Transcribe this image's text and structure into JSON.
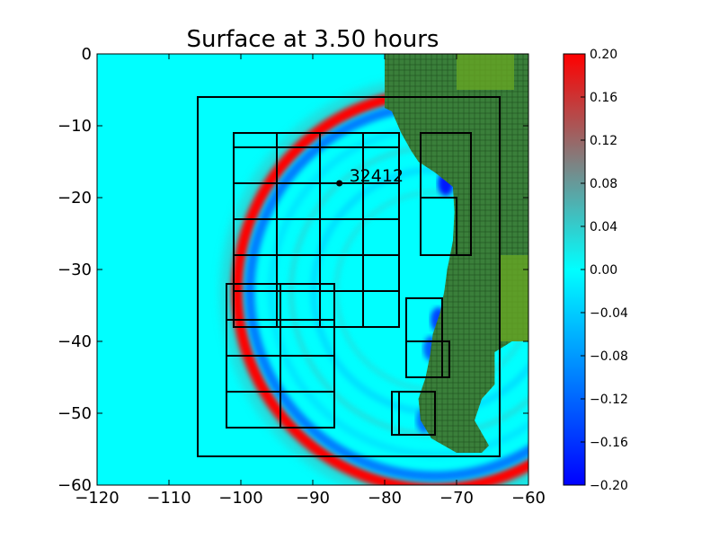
{
  "chart_data": {
    "type": "heatmap",
    "title": "Surface at 3.50 hours",
    "xlabel": "",
    "ylabel": "",
    "xlim": [
      -120,
      -60
    ],
    "ylim": [
      -60,
      0
    ],
    "x_ticks": [
      -120,
      -110,
      -100,
      -90,
      -80,
      -70,
      -60
    ],
    "y_ticks": [
      0,
      -10,
      -20,
      -30,
      -40,
      -50,
      -60
    ],
    "x_tick_labels": [
      "−120",
      "−110",
      "−100",
      "−90",
      "−80",
      "−70",
      "−60"
    ],
    "y_tick_labels": [
      "0",
      "−10",
      "−20",
      "−30",
      "−40",
      "−50",
      "−60"
    ],
    "colorbar": {
      "range": [
        -0.2,
        0.2
      ],
      "colormap": [
        "#0000ff",
        "#00ffff",
        "#808080",
        "#ff0000"
      ],
      "ticks": [
        0.2,
        0.16,
        0.12,
        0.08,
        0.04,
        0.0,
        -0.04,
        -0.08,
        -0.12,
        -0.16,
        -0.2
      ],
      "tick_labels": [
        "0.20",
        "0.16",
        "0.12",
        "0.08",
        "0.04",
        "0.00",
        "−0.04",
        "−0.08",
        "−0.12",
        "−0.16",
        "−0.20"
      ]
    },
    "background_color": "#00ffff",
    "land_color": "#3a7f3a",
    "highland_color": "#6aa823",
    "wave_front": {
      "center": [
        -73,
        -33
      ],
      "crest_radius_deg": 27.5,
      "crest_value": 0.2,
      "trough_value": -0.12,
      "fade_value": 0.05
    },
    "gauge": {
      "id": "32412",
      "label": "32412",
      "x": -86.3,
      "y": -18.0
    },
    "refinement_regions": [
      {
        "xlim": [
          -106,
          -64
        ],
        "ylim": [
          -56,
          -6
        ]
      },
      {
        "xlim": [
          -101,
          -78
        ],
        "ylim": [
          -38,
          -11
        ],
        "grid_step": [
          6,
          5
        ]
      },
      {
        "xlim": [
          -102,
          -87
        ],
        "ylim": [
          -52,
          -32
        ],
        "grid_step": [
          7.5,
          5
        ]
      },
      {
        "xlim": [
          -75,
          -68
        ],
        "ylim": [
          -28,
          -11
        ]
      },
      {
        "xlim": [
          -75,
          -70
        ],
        "ylim": [
          -28,
          -20
        ]
      },
      {
        "xlim": [
          -77,
          -72
        ],
        "ylim": [
          -45,
          -34
        ]
      },
      {
        "xlim": [
          -77,
          -71
        ],
        "ylim": [
          -45,
          -40
        ]
      },
      {
        "xlim": [
          -79,
          -73
        ],
        "ylim": [
          -53,
          -47
        ]
      },
      {
        "xlim": [
          -78,
          -73
        ],
        "ylim": [
          -53,
          -47
        ]
      }
    ],
    "coastline": [
      [
        -80,
        0
      ],
      [
        -80,
        -7.5
      ],
      [
        -79,
        -8
      ],
      [
        -77.7,
        -11
      ],
      [
        -76.3,
        -13.5
      ],
      [
        -75.3,
        -15
      ],
      [
        -73,
        -16.5
      ],
      [
        -70.5,
        -18.5
      ],
      [
        -70.3,
        -22
      ],
      [
        -70.5,
        -26
      ],
      [
        -71.3,
        -30
      ],
      [
        -71.7,
        -33
      ],
      [
        -72.3,
        -36
      ],
      [
        -73.3,
        -39
      ],
      [
        -73.7,
        -42
      ],
      [
        -74.3,
        -45
      ],
      [
        -75.3,
        -48
      ],
      [
        -75.0,
        -51
      ],
      [
        -73.5,
        -53.5
      ],
      [
        -70.0,
        -55.5
      ],
      [
        -66.5,
        -55.5
      ],
      [
        -65.5,
        -54.5
      ],
      [
        -67.5,
        -51
      ],
      [
        -66.5,
        -48
      ],
      [
        -64.7,
        -46
      ],
      [
        -64.7,
        -41.5
      ],
      [
        -62.3,
        -40
      ],
      [
        -60.0,
        -40
      ],
      [
        -60,
        0
      ]
    ]
  }
}
